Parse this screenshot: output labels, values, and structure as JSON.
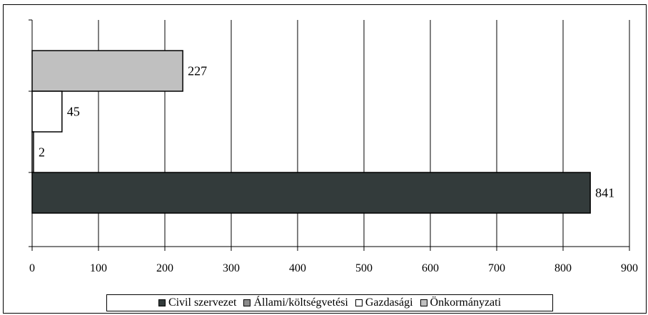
{
  "chart_data": {
    "type": "bar",
    "orientation": "horizontal",
    "title": "",
    "xlabel": "",
    "ylabel": "",
    "xlim": [
      0,
      900
    ],
    "xticks": [
      0,
      100,
      200,
      300,
      400,
      500,
      600,
      700,
      800,
      900
    ],
    "grid": "vertical",
    "legend_position": "bottom",
    "series": [
      {
        "name": "Civil szervezet",
        "value": 841,
        "color": "#333b3b"
      },
      {
        "name": "Állami/költségvetési",
        "value": 2,
        "color": "#ffffff"
      },
      {
        "name": "Gazdasági",
        "value": 45,
        "color": "#ffffff"
      },
      {
        "name": "Önkormányzati",
        "value": 227,
        "color": "#c0c0c0"
      }
    ]
  },
  "legend": {
    "items": [
      {
        "label": "Civil szervezet",
        "color": "#333b3b"
      },
      {
        "label": "Állami/költségvetési",
        "color": "#8c8c8c"
      },
      {
        "label": "Gazdasági",
        "color": "#ffffff"
      },
      {
        "label": "Önkormányzati",
        "color": "#c0c0c0"
      }
    ]
  }
}
